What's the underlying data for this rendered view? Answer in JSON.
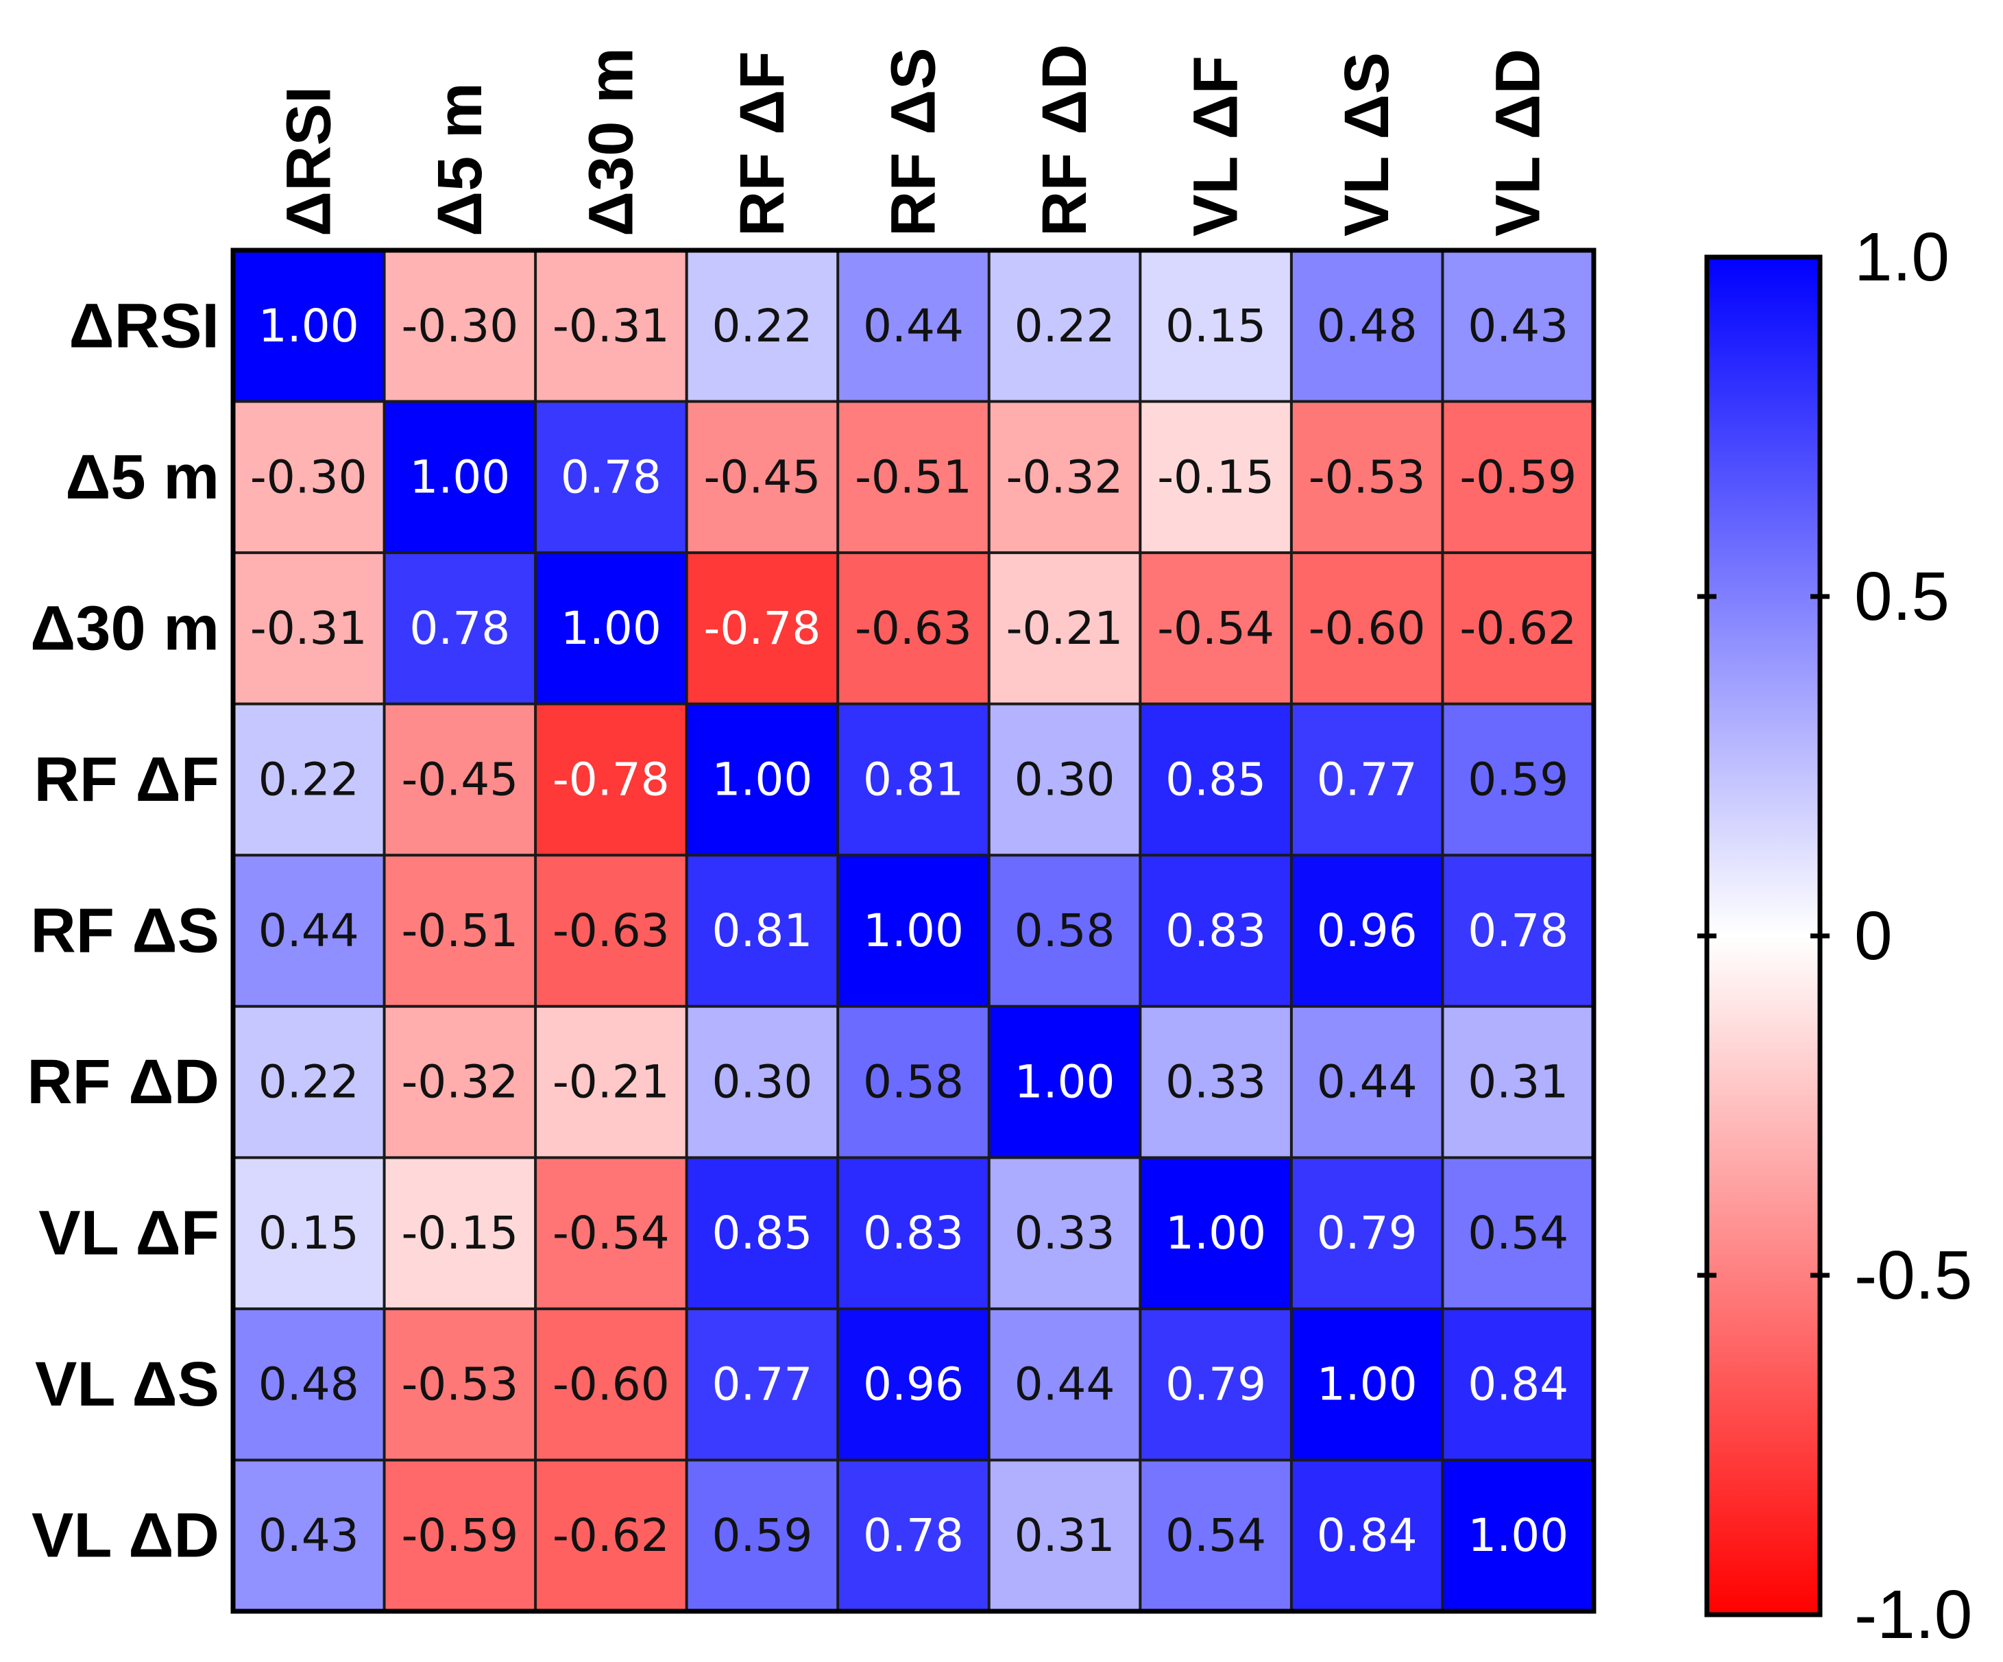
{
  "chart_data": {
    "type": "heatmap",
    "title": "",
    "xlabel": "",
    "ylabel": "",
    "labels": [
      "ΔRSI",
      "Δ5 m",
      "Δ30 m",
      "RF ΔF",
      "RF ΔS",
      "RF ΔD",
      "VL ΔF",
      "VL ΔS",
      "VL ΔD"
    ],
    "values": [
      [
        1.0,
        -0.3,
        -0.31,
        0.22,
        0.44,
        0.22,
        0.15,
        0.48,
        0.43
      ],
      [
        -0.3,
        1.0,
        0.78,
        -0.45,
        -0.51,
        -0.32,
        -0.15,
        -0.53,
        -0.59
      ],
      [
        -0.31,
        0.78,
        1.0,
        -0.78,
        -0.63,
        -0.21,
        -0.54,
        -0.6,
        -0.62
      ],
      [
        0.22,
        -0.45,
        -0.78,
        1.0,
        0.81,
        0.3,
        0.85,
        0.77,
        0.59
      ],
      [
        0.44,
        -0.51,
        -0.63,
        0.81,
        1.0,
        0.58,
        0.83,
        0.96,
        0.78
      ],
      [
        0.22,
        -0.32,
        -0.21,
        0.3,
        0.58,
        1.0,
        0.33,
        0.44,
        0.31
      ],
      [
        0.15,
        -0.15,
        -0.54,
        0.85,
        0.83,
        0.33,
        1.0,
        0.79,
        0.54
      ],
      [
        0.48,
        -0.53,
        -0.6,
        0.77,
        0.96,
        0.44,
        0.79,
        1.0,
        0.84
      ],
      [
        0.43,
        -0.59,
        -0.62,
        0.59,
        0.78,
        0.31,
        0.54,
        0.84,
        1.0
      ]
    ],
    "value_range": [
      -1.0,
      1.0
    ],
    "colorbar": {
      "ticks": [
        1.0,
        0.5,
        0,
        -0.5,
        -1.0
      ],
      "tick_labels": [
        "1.0",
        "0.5",
        "0",
        "-0.5",
        "-1.0"
      ],
      "low_color": "#ff0000",
      "mid_color": "#ffffff",
      "high_color": "#0000ff"
    }
  }
}
